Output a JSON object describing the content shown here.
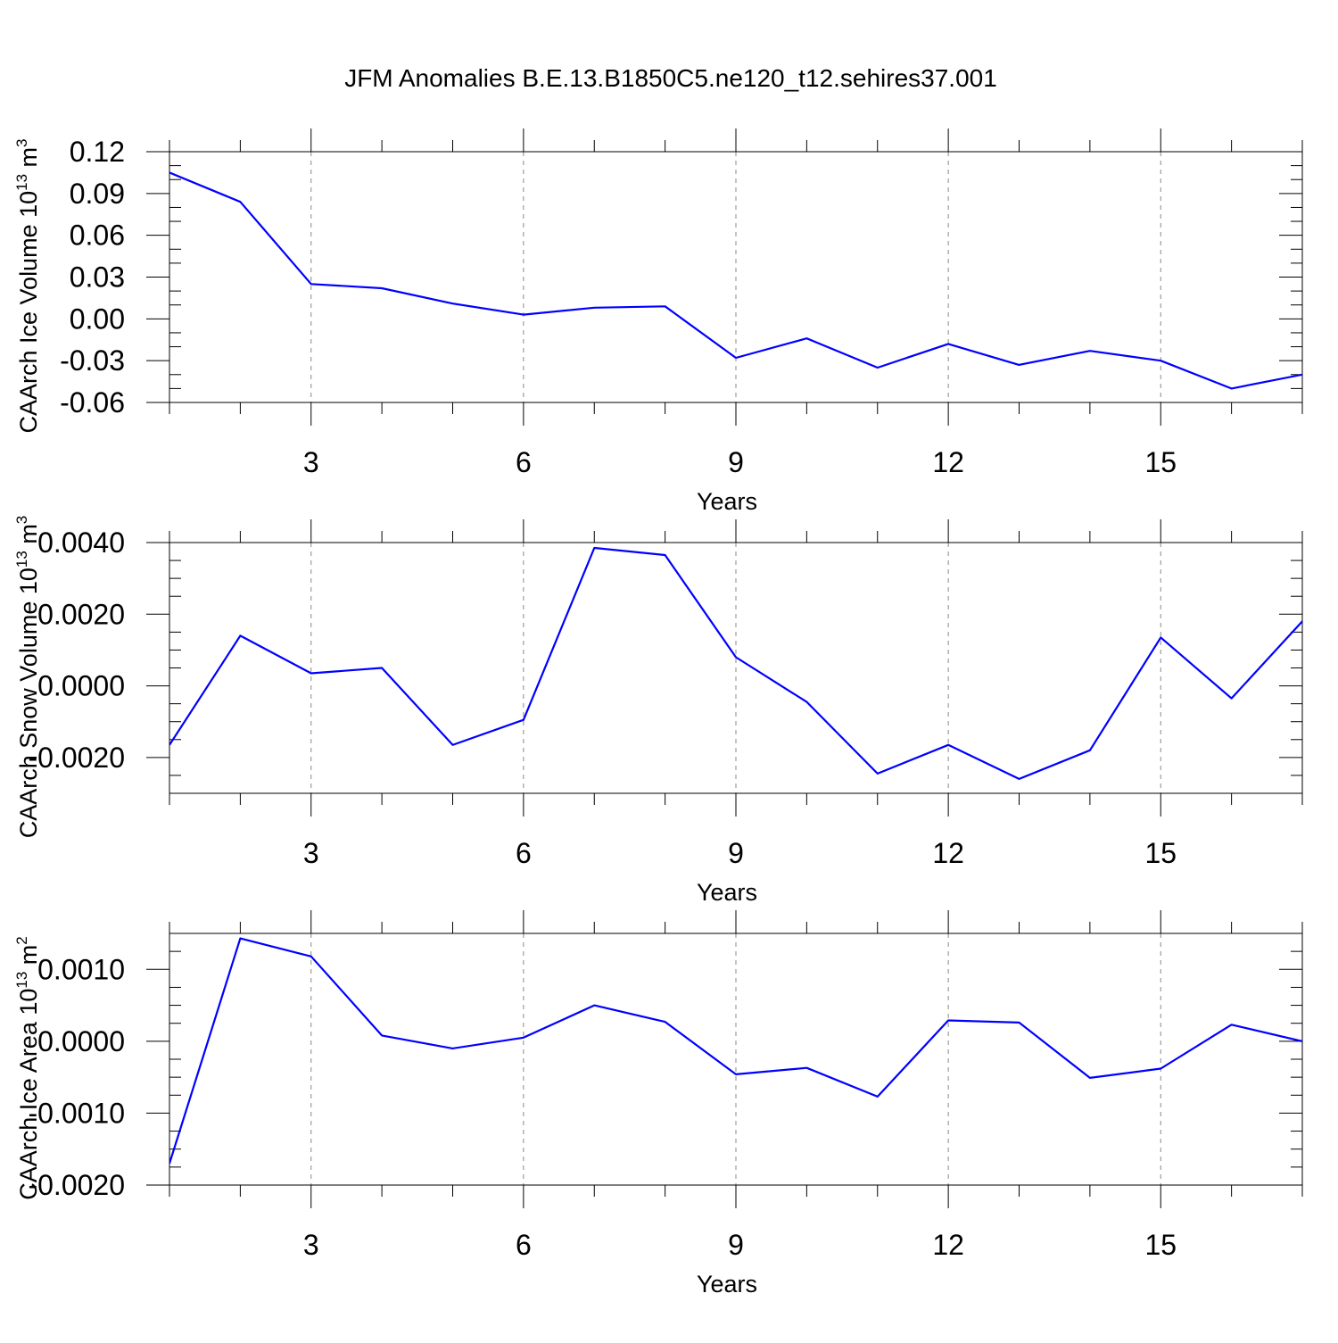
{
  "title": "JFM Anomalies B.E.13.B1850C5.ne120_t12.sehires37.001",
  "colors": {
    "line": "#0000ff",
    "axis": "#000000",
    "grid": "#888888"
  },
  "chart_data": [
    {
      "type": "line",
      "title": "JFM Anomalies B.E.13.B1850C5.ne120_t12.sehires37.001",
      "xlabel": "Years",
      "ylabel": "CAArch Ice Volume 10",
      "ylabel_exp1": "13",
      "ylabel_mid": " m",
      "ylabel_exp2": "3",
      "xlim": [
        1,
        17
      ],
      "ylim": [
        -0.06,
        0.12
      ],
      "x_ticks": [
        3,
        6,
        9,
        12,
        15
      ],
      "x_tick_labels": [
        "3",
        "6",
        "9",
        "12",
        "15"
      ],
      "y_ticks": [
        -0.06,
        -0.03,
        0.0,
        0.03,
        0.06,
        0.09,
        0.12
      ],
      "y_tick_labels": [
        "-0.06",
        "-0.03",
        "0.00",
        "0.03",
        "0.06",
        "0.09",
        "0.12"
      ],
      "x_minor_step": 1,
      "y_minor_step": 0.01,
      "x": [
        1,
        2,
        3,
        4,
        5,
        6,
        7,
        8,
        9,
        10,
        11,
        12,
        13,
        14,
        15,
        16,
        17
      ],
      "y": [
        0.105,
        0.084,
        0.025,
        0.022,
        0.011,
        0.003,
        0.008,
        0.009,
        -0.028,
        -0.014,
        -0.035,
        -0.018,
        -0.033,
        -0.023,
        -0.03,
        -0.05,
        -0.04
      ]
    },
    {
      "type": "line",
      "xlabel": "Years",
      "ylabel": "CAArch Snow Volume 10",
      "ylabel_exp1": "13",
      "ylabel_mid": " m",
      "ylabel_exp2": "3",
      "xlim": [
        1,
        17
      ],
      "ylim": [
        -0.003,
        0.004
      ],
      "x_ticks": [
        3,
        6,
        9,
        12,
        15
      ],
      "x_tick_labels": [
        "3",
        "6",
        "9",
        "12",
        "15"
      ],
      "y_ticks": [
        -0.002,
        0.0,
        0.002,
        0.004
      ],
      "y_tick_labels": [
        "-0.0020",
        "0.0000",
        "0.0020",
        "0.0040"
      ],
      "x_minor_step": 1,
      "y_minor_step": 0.0005,
      "x": [
        1,
        2,
        3,
        4,
        5,
        6,
        7,
        8,
        9,
        10,
        11,
        12,
        13,
        14,
        15,
        16,
        17
      ],
      "y": [
        -0.00165,
        0.0014,
        0.00035,
        0.0005,
        -0.00165,
        -0.00095,
        0.00385,
        0.00365,
        0.0008,
        -0.00045,
        -0.00245,
        -0.00165,
        -0.0026,
        -0.0018,
        0.00135,
        -0.00035,
        0.0018
      ]
    },
    {
      "type": "line",
      "xlabel": "Years",
      "ylabel": "CAArch Ice Area 10",
      "ylabel_exp1": "13",
      "ylabel_mid": " m",
      "ylabel_exp2": "2",
      "xlim": [
        1,
        17
      ],
      "ylim": [
        -0.002,
        0.0015
      ],
      "x_ticks": [
        3,
        6,
        9,
        12,
        15
      ],
      "x_tick_labels": [
        "3",
        "6",
        "9",
        "12",
        "15"
      ],
      "y_ticks": [
        -0.002,
        -0.001,
        0.0,
        0.001
      ],
      "y_tick_labels": [
        "-0.0020",
        "-0.0010",
        "0.0000",
        "0.0010"
      ],
      "x_minor_step": 1,
      "y_minor_step": 0.00025,
      "x": [
        1,
        2,
        3,
        4,
        5,
        6,
        7,
        8,
        9,
        10,
        11,
        12,
        13,
        14,
        15,
        16,
        17
      ],
      "y": [
        -0.0017,
        0.00143,
        0.00118,
        8e-05,
        -0.0001,
        5e-05,
        0.0005,
        0.00027,
        -0.00046,
        -0.00037,
        -0.00077,
        0.00029,
        0.00026,
        -0.00051,
        -0.00038,
        0.00023,
        0.0
      ]
    }
  ]
}
